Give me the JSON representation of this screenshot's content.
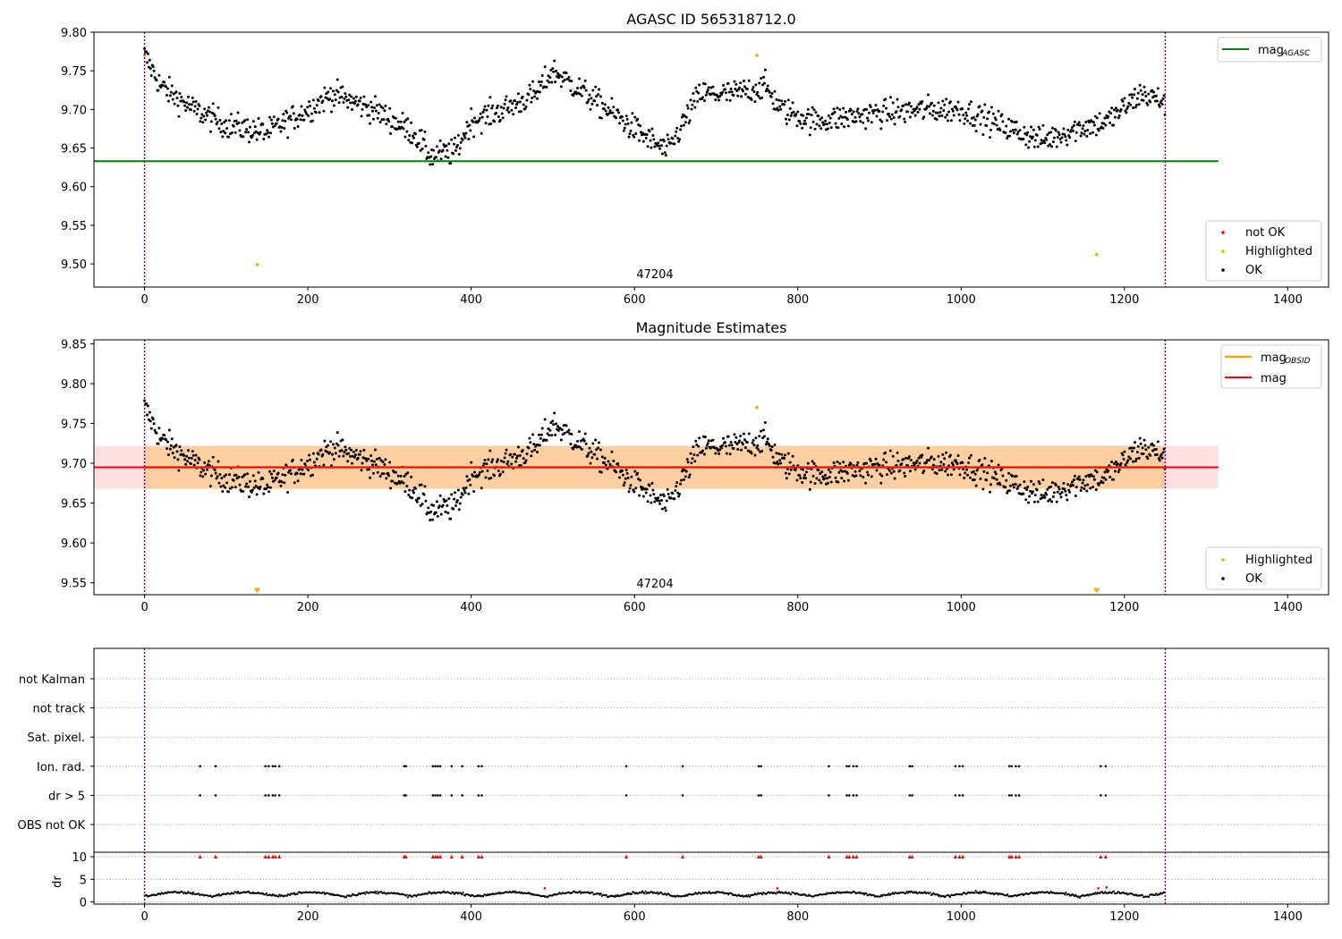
{
  "figure": {
    "title": "AGASC ID 565318712.0",
    "subtitle": "Magnitude Estimates"
  },
  "chart_data": [
    {
      "type": "scatter",
      "title": "AGASC ID 565318712.0",
      "xlim": [
        -62,
        1450
      ],
      "ylim": [
        9.47,
        9.8
      ],
      "xticks": [
        0,
        200,
        400,
        600,
        800,
        1000,
        1200,
        1400
      ],
      "yticks": [
        9.5,
        9.55,
        9.6,
        9.65,
        9.7,
        9.75,
        9.8
      ],
      "vlines": [
        0,
        1250
      ],
      "annotation": "47204",
      "hline": {
        "name": "mag_AGASC",
        "value": 9.633,
        "color": "#008000"
      },
      "highlighted_points": [
        [
          0,
          9.77
        ],
        [
          138,
          9.499
        ],
        [
          750,
          9.77
        ],
        [
          1166,
          9.512
        ]
      ],
      "ok_series_trend": {
        "x": [
          0,
          20,
          60,
          100,
          150,
          200,
          230,
          280,
          330,
          350,
          380,
          400,
          440,
          480,
          500,
          540,
          580,
          620,
          640,
          680,
          720,
          760,
          780,
          820,
          860,
          900,
          960,
          1000,
          1060,
          1100,
          1140,
          1180,
          1220,
          1250
        ],
        "y": [
          9.77,
          9.73,
          9.7,
          9.68,
          9.67,
          9.7,
          9.72,
          9.7,
          9.67,
          9.64,
          9.645,
          9.685,
          9.7,
          9.72,
          9.75,
          9.72,
          9.69,
          9.66,
          9.645,
          9.72,
          9.72,
          9.73,
          9.7,
          9.685,
          9.69,
          9.695,
          9.7,
          9.7,
          9.675,
          9.66,
          9.675,
          9.685,
          9.72,
          9.71
        ]
      },
      "legend_upper": [
        {
          "label": "mag",
          "subscript": "AGASC",
          "color": "#008000"
        }
      ],
      "legend_lower": [
        {
          "label": "not OK",
          "color": "#ff0000"
        },
        {
          "label": "Highlighted",
          "color": "#ffa500"
        },
        {
          "label": "OK",
          "color": "#000000"
        }
      ]
    },
    {
      "type": "scatter",
      "title": "Magnitude Estimates",
      "xlim": [
        -62,
        1450
      ],
      "ylim": [
        9.535,
        9.855
      ],
      "xticks": [
        0,
        200,
        400,
        600,
        800,
        1000,
        1200,
        1400
      ],
      "yticks": [
        9.55,
        9.6,
        9.65,
        9.7,
        9.75,
        9.8,
        9.85
      ],
      "vlines": [
        0,
        1250
      ],
      "annotation": "47204",
      "mag_obsid": {
        "value": 9.695,
        "band": [
          9.668,
          9.722
        ],
        "color": "#ffa500"
      },
      "mag": {
        "value": 9.695,
        "band": [
          9.668,
          9.722
        ],
        "color": "#ff0000"
      },
      "highlighted_markers": [
        [
          138,
          9.54
        ],
        [
          750,
          9.77
        ],
        [
          1166,
          9.54
        ]
      ],
      "legend_upper": [
        {
          "label": "mag",
          "subscript": "OBSID",
          "color": "#ffa500"
        },
        {
          "label": "mag",
          "subscript": "",
          "color": "#ff0000"
        }
      ],
      "legend_lower": [
        {
          "label": "Highlighted",
          "color": "#ffa500"
        },
        {
          "label": "OK",
          "color": "#000000"
        }
      ]
    },
    {
      "type": "scatter",
      "xlim": [
        -62,
        1450
      ],
      "xticks": [
        0,
        200,
        400,
        600,
        800,
        1000,
        1200,
        1400
      ],
      "flag_rows": [
        "not Kalman",
        "not track",
        "Sat. pixel.",
        "Ion. rad.",
        "dr > 5",
        "OBS not OK"
      ],
      "flag_x": [
        68,
        87,
        148,
        152,
        157,
        160,
        165,
        318,
        320,
        353,
        356,
        359,
        362,
        376,
        389,
        409,
        413,
        590,
        659,
        752,
        755,
        838,
        860,
        863,
        868,
        872,
        937,
        940,
        993,
        998,
        1002,
        1059,
        1062,
        1067,
        1071,
        1171,
        1177
      ],
      "dr": {
        "ylabel": "dr",
        "ylim": [
          -0.5,
          11
        ],
        "yticks": [
          0,
          5,
          10
        ],
        "red_markers_at": 10,
        "red_points": [
          [
            490,
            3.0
          ],
          [
            775,
            3.0
          ],
          [
            1168,
            3.0
          ],
          [
            1178,
            3.2
          ]
        ]
      }
    }
  ]
}
